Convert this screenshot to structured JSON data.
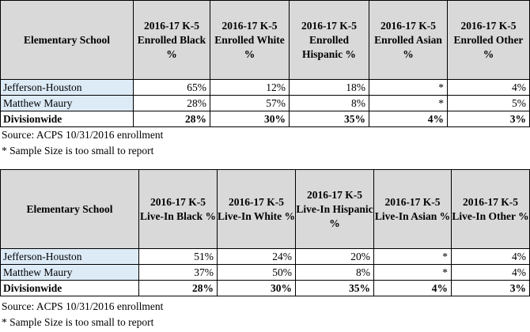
{
  "table1": {
    "headers": [
      "Elementary School",
      "2016-17 K-5 Enrolled Black %",
      "2016-17 K-5 Enrolled White %",
      "2016-17 K-5 Enrolled Hispanic %",
      "2016-17 K-5 Enrolled Asian %",
      "2016-17 K-5 Enrolled Other %"
    ],
    "rows": [
      [
        "Jefferson-Houston",
        "65%",
        "12%",
        "18%",
        "*",
        "4%"
      ],
      [
        "Matthew Maury",
        "28%",
        "57%",
        "8%",
        "*",
        "5%"
      ]
    ],
    "total": [
      "Divisionwide",
      "28%",
      "30%",
      "35%",
      "4%",
      "3%"
    ],
    "source": "Source: ACPS 10/31/2016 enrollment",
    "note": "* Sample Size is too small to report"
  },
  "table2": {
    "headers": [
      "Elementary School",
      "2016-17 K-5 Live-In Black %",
      "2016-17 K-5 Live-In White %",
      "2016-17 K-5 Live-In Hispanic %",
      "2016-17 K-5 Live-In Asian %",
      "2016-17 K-5 Live-In Other %"
    ],
    "rows": [
      [
        "Jefferson-Houston",
        "51%",
        "24%",
        "20%",
        "*",
        "4%"
      ],
      [
        "Matthew Maury",
        "37%",
        "50%",
        "8%",
        "*",
        "4%"
      ]
    ],
    "total": [
      "Divisionwide",
      "28%",
      "30%",
      "35%",
      "4%",
      "3%"
    ],
    "source": "Source: ACPS 10/31/2016 enrollment",
    "note": "* Sample Size is too small to report"
  }
}
